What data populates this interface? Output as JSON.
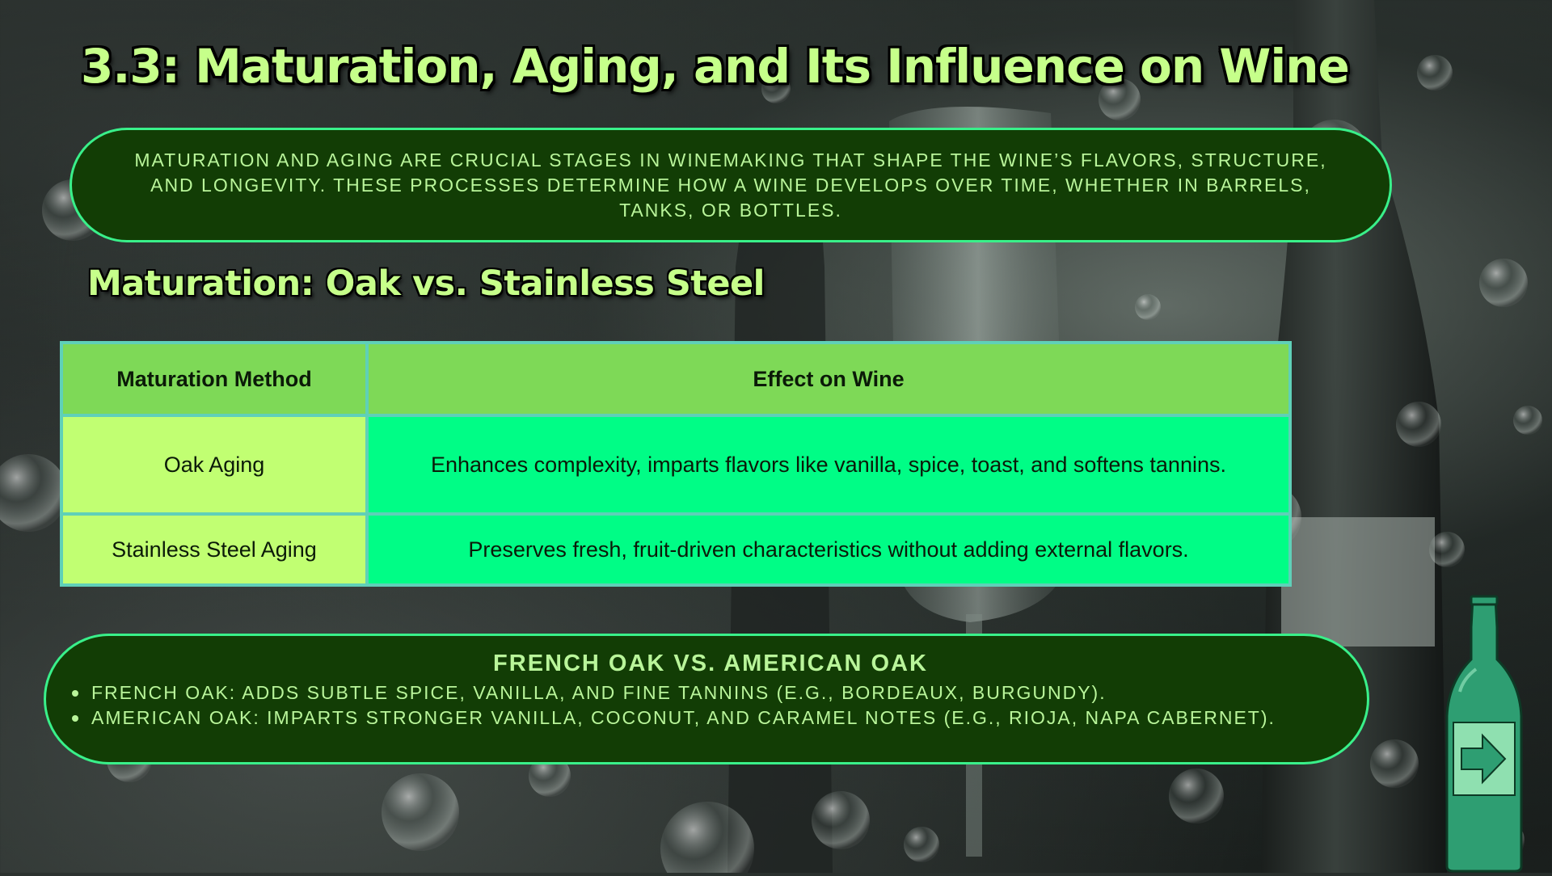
{
  "slide": {
    "title": "3.3: Maturation, Aging, and Its Influence on Wine",
    "intro": "Maturation and aging are crucial stages in winemaking that shape the wine’s flavors, structure, and longevity. These processes determine how a wine develops over time, whether in barrels, tanks, or bottles.",
    "subtitle": "Maturation: Oak vs. Stainless Steel"
  },
  "table": {
    "headers": [
      "Maturation Method",
      "Effect on Wine"
    ],
    "rows": [
      {
        "method": "Oak Aging",
        "effect": "Enhances complexity, imparts flavors like vanilla, spice, toast, and softens tannins."
      },
      {
        "method": "Stainless Steel Aging",
        "effect": "Preserves fresh, fruit-driven characteristics without adding external flavors."
      }
    ]
  },
  "oak_box": {
    "heading": "French Oak vs. American Oak",
    "bullets": [
      "French Oak: Adds subtle spice, vanilla, and fine tannins (e.g., Bordeaux, Burgundy).",
      "American Oak: Imparts stronger vanilla, coconut, and caramel notes (e.g., Rioja, Napa Cabernet)."
    ]
  },
  "navigation": {
    "next_icon": "bottle-arrow-icon"
  },
  "colors": {
    "title_green": "#c6ff8a",
    "pill_fill": "#123d05",
    "pill_border": "#39f08a",
    "header_green": "#7ed957",
    "method_cell": "#c1ff72",
    "effect_cell": "#00fd86",
    "bottle_green": "#2e9e72"
  }
}
